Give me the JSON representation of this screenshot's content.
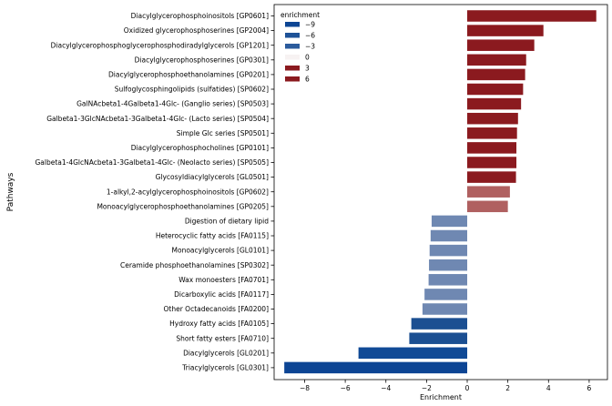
{
  "chart_data": {
    "type": "bar",
    "orientation": "horizontal",
    "title": "",
    "xlabel": "Enrichment",
    "ylabel": "Pathways",
    "xlim": [
      -9.5,
      6.9
    ],
    "xticks": [
      -8,
      -6,
      -4,
      -2,
      0,
      2,
      4,
      6
    ],
    "xtick_labels": [
      "−8",
      "−6",
      "−4",
      "−2",
      "0",
      "2",
      "4",
      "6"
    ],
    "grid": false,
    "categories": [
      "Diacylglycerophosphoinositols [GP0601]",
      "Oxidized glycerophosphoserines [GP2004]",
      "Diacylglycerophosphoglycerophosphodiradylglycerols [GP1201]",
      "Diacylglycerophosphoserines [GP0301]",
      "Diacylglycerophosphoethanolamines [GP0201]",
      "Sulfoglycosphingolipids (sulfatides) [SP0602]",
      "GalNAcbeta1-4Galbeta1-4Glc- (Ganglio series) [SP0503]",
      "Galbeta1-3GlcNAcbeta1-3Galbeta1-4Glc- (Lacto series) [SP0504]",
      "Simple Glc series [SP0501]",
      "Diacylglycerophosphocholines [GP0101]",
      "Galbeta1-4GlcNAcbeta1-3Galbeta1-4Glc- (Neolacto series) [SP0505]",
      "Glycosyldiacylglycerols [GL0501]",
      "1-alkyl,2-acylglycerophosphoinositols [GP0602]",
      "Monoacylglycerophosphoethanolamines [GP0205]",
      "Digestion of dietary lipid",
      "Heterocyclic fatty acids [FA0115]",
      "Monoacylglycerols [GL0101]",
      "Ceramide phosphoethanolamines [SP0302]",
      "Wax monoesters [FA0701]",
      "Dicarboxylic acids [FA0117]",
      "Other Octadecanoids [FA0200]",
      "Hydroxy fatty acids [FA0105]",
      "Short fatty esters [FA0710]",
      "Diacylglycerols [GL0201]",
      "Triacylglycerols [GL0301]"
    ],
    "values": [
      6.35,
      3.75,
      3.3,
      2.9,
      2.85,
      2.75,
      2.65,
      2.5,
      2.45,
      2.42,
      2.42,
      2.4,
      2.1,
      2.0,
      -1.75,
      -1.8,
      -1.85,
      -1.88,
      -1.9,
      -2.1,
      -2.2,
      -2.75,
      -2.85,
      -5.35,
      -9.0
    ],
    "bar_colors": [
      "#8b1a1f",
      "#8b1a1f",
      "#8b1a1f",
      "#8b1a1f",
      "#8b1a1f",
      "#8b1a1f",
      "#8b1a1f",
      "#8b1a1f",
      "#8b1a1f",
      "#8b1a1f",
      "#8b1a1f",
      "#8b1a1f",
      "#b06060",
      "#b06060",
      "#6f88b2",
      "#6f88b2",
      "#6f88b2",
      "#6f88b2",
      "#6f88b2",
      "#6f88b2",
      "#6f88b2",
      "#1b4f92",
      "#1b4f92",
      "#104a96",
      "#0d4594"
    ],
    "legend": {
      "title": "enrichment",
      "position": "top-left",
      "entries": [
        {
          "label": "−9",
          "color": "#0d4594"
        },
        {
          "label": "−6",
          "color": "#1e5297"
        },
        {
          "label": "−3",
          "color": "#2b5b9c"
        },
        {
          "label": "0",
          "color": "#f7f2f2"
        },
        {
          "label": "3",
          "color": "#8b1a1f"
        },
        {
          "label": "6",
          "color": "#8b1a1f"
        }
      ]
    }
  }
}
